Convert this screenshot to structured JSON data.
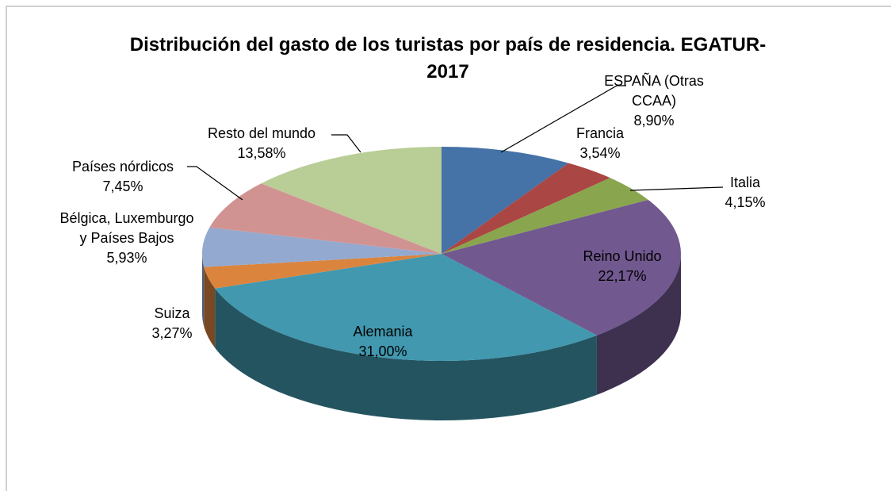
{
  "chart_data": {
    "type": "pie3d",
    "title": "Distribución del gasto de los turistas por país de residencia. EGATUR-2017",
    "categories": [
      "ESPAÑA (Otras CCAA)",
      "Francia",
      "Italia",
      "Reino Unido",
      "Alemania",
      "Suiza",
      "Bélgica, Luxemburgo y Países Bajos",
      "Países nórdicos",
      "Resto del mundo"
    ],
    "values": [
      8.9,
      3.54,
      4.15,
      22.17,
      31.0,
      3.27,
      5.93,
      7.45,
      13.58
    ],
    "value_labels": [
      "8,90%",
      "3,54%",
      "4,15%",
      "22,17%",
      "31,00%",
      "3,27%",
      "5,93%",
      "7,45%",
      "13,58%"
    ],
    "colors": [
      "#4572a7",
      "#aa4643",
      "#89a54e",
      "#71588f",
      "#4198af",
      "#db843d",
      "#93a9cf",
      "#d19392",
      "#b9cd96"
    ]
  }
}
